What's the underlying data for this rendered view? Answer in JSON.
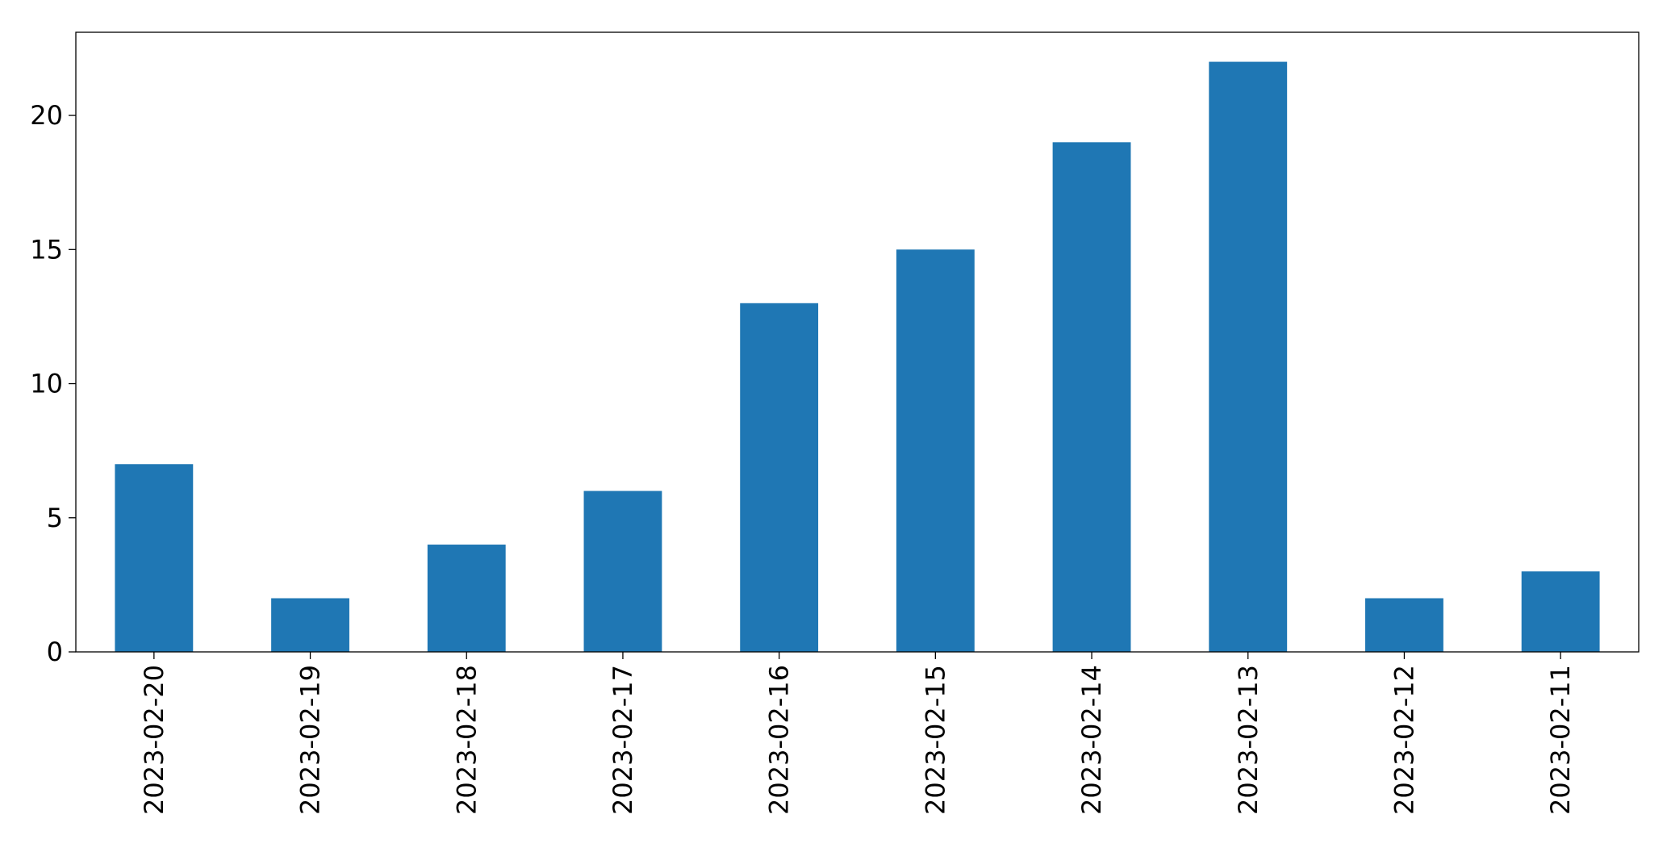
{
  "chart_data": {
    "type": "bar",
    "categories": [
      "2023-02-20",
      "2023-02-19",
      "2023-02-18",
      "2023-02-17",
      "2023-02-16",
      "2023-02-15",
      "2023-02-14",
      "2023-02-13",
      "2023-02-12",
      "2023-02-11"
    ],
    "values": [
      7,
      2,
      4,
      6,
      13,
      15,
      19,
      22,
      2,
      3
    ],
    "color": "#1f77b4",
    "ylim": [
      0,
      23.1
    ],
    "yticks": [
      0,
      5,
      10,
      15,
      20
    ],
    "grid": false
  }
}
